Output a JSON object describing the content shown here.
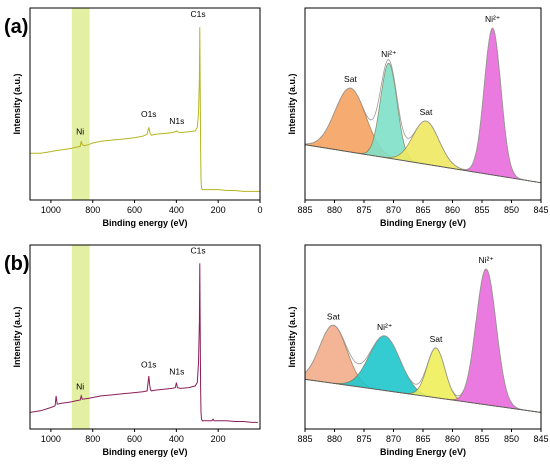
{
  "panel_labels": [
    "(a)",
    "(b)"
  ],
  "chart_data": [
    {
      "id": "a-survey",
      "panel": "(a)",
      "type": "line",
      "xlabel": "Binding energy (eV)",
      "ylabel": "Intensity (a.u.)",
      "xlim": [
        1100,
        0
      ],
      "ylim": [
        0,
        1
      ],
      "xticks": [
        1000,
        800,
        600,
        400,
        200,
        0
      ],
      "color": "#b5b521",
      "highlight": {
        "x": [
          900,
          815
        ],
        "color": "#e3f0a3"
      },
      "series": [
        {
          "x": [
            1100,
            1050,
            1000,
            980,
            950,
            920,
            900,
            880,
            860,
            855,
            850,
            840,
            820,
            800,
            760,
            720,
            680,
            640,
            600,
            560,
            540,
            532,
            528,
            524,
            520,
            500,
            460,
            420,
            405,
            400,
            395,
            380,
            340,
            310,
            300,
            294,
            290,
            288,
            286,
            284,
            282,
            280,
            276,
            272,
            260,
            240,
            200,
            160,
            120,
            80,
            40,
            0
          ],
          "y": [
            0.27,
            0.27,
            0.28,
            0.285,
            0.29,
            0.295,
            0.3,
            0.305,
            0.31,
            0.34,
            0.32,
            0.315,
            0.32,
            0.33,
            0.34,
            0.345,
            0.35,
            0.355,
            0.36,
            0.37,
            0.38,
            0.42,
            0.4,
            0.38,
            0.375,
            0.38,
            0.385,
            0.39,
            0.395,
            0.4,
            0.395,
            0.39,
            0.395,
            0.4,
            0.42,
            0.5,
            0.7,
            1.0,
            0.65,
            0.3,
            0.12,
            0.07,
            0.06,
            0.06,
            0.06,
            0.06,
            0.06,
            0.055,
            0.055,
            0.05,
            0.05,
            0.05
          ]
        }
      ],
      "annotations": [
        {
          "text": "Ni",
          "x": 860,
          "y": 0.38
        },
        {
          "text": "O1s",
          "x": 532,
          "y": 0.48
        },
        {
          "text": "N1s",
          "x": 398,
          "y": 0.44
        },
        {
          "text": "C1s",
          "x": 296,
          "y": 1.06
        }
      ]
    },
    {
      "id": "a-ni2p",
      "panel": "(a)",
      "type": "area",
      "xlabel": "Binding Energy (eV)",
      "ylabel": "Intensity (a.u.)",
      "xlim": [
        885,
        845
      ],
      "ylim": [
        0,
        1
      ],
      "xticks": [
        885,
        880,
        875,
        870,
        865,
        860,
        855,
        850,
        845
      ],
      "baseline": {
        "x": [
          885,
          845
        ],
        "y": [
          0.32,
          0.1
        ]
      },
      "components": [
        {
          "label": "Sat",
          "center": 877.3,
          "width": 2.6,
          "height": 0.37,
          "color": "#f5a261"
        },
        {
          "label": "Ni²⁺",
          "center": 870.8,
          "width": 1.4,
          "height": 0.55,
          "color": "#7ee0c8"
        },
        {
          "label": "Sat",
          "center": 864.5,
          "width": 2.2,
          "height": 0.25,
          "color": "#efe860"
        },
        {
          "label": "Ni²⁺",
          "center": 853.2,
          "width": 1.4,
          "height": 0.85,
          "color": "#e86bdc"
        }
      ]
    },
    {
      "id": "b-survey",
      "panel": "(b)",
      "type": "line",
      "xlabel": "Binding energy (eV)",
      "ylabel": "Intensity (a.u.)",
      "xlim": [
        1100,
        0
      ],
      "ylim": [
        0,
        1
      ],
      "xticks": [
        1000,
        800,
        600,
        400,
        200
      ],
      "color": "#8b1e5a",
      "highlight": {
        "x": [
          900,
          815
        ],
        "color": "#e3f0a3"
      },
      "series": [
        {
          "x": [
            1100,
            1050,
            1000,
            980,
            975,
            970,
            950,
            920,
            900,
            880,
            860,
            855,
            850,
            820,
            800,
            760,
            720,
            680,
            640,
            600,
            560,
            540,
            532,
            528,
            524,
            520,
            500,
            460,
            420,
            405,
            400,
            395,
            380,
            340,
            310,
            300,
            294,
            290,
            288,
            286,
            284,
            282,
            280,
            276,
            272,
            260,
            230,
            225,
            220,
            200,
            160,
            120,
            80,
            40,
            10
          ],
          "y": [
            0.1,
            0.11,
            0.13,
            0.14,
            0.2,
            0.15,
            0.155,
            0.16,
            0.165,
            0.17,
            0.175,
            0.2,
            0.18,
            0.185,
            0.19,
            0.2,
            0.205,
            0.21,
            0.215,
            0.22,
            0.225,
            0.23,
            0.32,
            0.27,
            0.24,
            0.23,
            0.235,
            0.24,
            0.245,
            0.25,
            0.28,
            0.25,
            0.245,
            0.25,
            0.26,
            0.28,
            0.4,
            0.65,
            1.0,
            0.6,
            0.25,
            0.1,
            0.06,
            0.05,
            0.05,
            0.05,
            0.05,
            0.06,
            0.05,
            0.05,
            0.05,
            0.045,
            0.045,
            0.04,
            0.04
          ]
        }
      ],
      "annotations": [
        {
          "text": "Ni",
          "x": 860,
          "y": 0.24
        },
        {
          "text": "O1s",
          "x": 532,
          "y": 0.37
        },
        {
          "text": "N1s",
          "x": 398,
          "y": 0.33
        },
        {
          "text": "C1s",
          "x": 296,
          "y": 1.06
        }
      ]
    },
    {
      "id": "b-ni2p",
      "panel": "(b)",
      "type": "area",
      "xlabel": "Binding Energy (eV)",
      "ylabel": "Intensity (a.u.)",
      "xlim": [
        885,
        845
      ],
      "ylim": [
        0,
        1
      ],
      "xticks": [
        885,
        880,
        875,
        870,
        865,
        860,
        855,
        850,
        845
      ],
      "baseline": {
        "x": [
          885,
          845
        ],
        "y": [
          0.3,
          0.1
        ]
      },
      "components": [
        {
          "label": "Sat",
          "center": 880.2,
          "width": 2.3,
          "height": 0.35,
          "color": "#f2ad8a"
        },
        {
          "label": "Ni²⁺",
          "center": 871.5,
          "width": 2.6,
          "height": 0.33,
          "color": "#1ec6cc"
        },
        {
          "label": "Sat",
          "center": 862.8,
          "width": 1.5,
          "height": 0.3,
          "color": "#eeee5a"
        },
        {
          "label": "Ni²⁺",
          "center": 854.3,
          "width": 1.7,
          "height": 0.82,
          "color": "#e86bdc"
        }
      ]
    }
  ]
}
